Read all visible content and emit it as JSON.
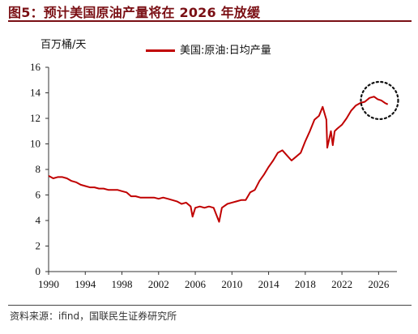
{
  "header": {
    "title": "图5：预计美国原油产量将在 2026 年放缓"
  },
  "footer": {
    "source": "资料来源：ifind，国联民生证券研究所"
  },
  "chart_data": {
    "type": "line",
    "ylabel": "百万桶/天",
    "xlim": [
      1990,
      2028
    ],
    "ylim": [
      0,
      16
    ],
    "x_ticks": [
      1990,
      1994,
      1998,
      2002,
      2006,
      2010,
      2014,
      2018,
      2022,
      2026
    ],
    "y_ticks": [
      0,
      2,
      4,
      6,
      8,
      10,
      12,
      14,
      16
    ],
    "legend_position": "top-center",
    "grid": false,
    "annotation": "dotted circle around 2025–2027 projection",
    "series": [
      {
        "name": "美国:原油:日均产量",
        "color": "#c00000",
        "points": [
          [
            1990.0,
            7.5
          ],
          [
            1990.5,
            7.3
          ],
          [
            1991.0,
            7.4
          ],
          [
            1991.5,
            7.4
          ],
          [
            1992.0,
            7.3
          ],
          [
            1992.5,
            7.1
          ],
          [
            1993.0,
            7.0
          ],
          [
            1993.5,
            6.8
          ],
          [
            1994.0,
            6.7
          ],
          [
            1994.5,
            6.6
          ],
          [
            1995.0,
            6.6
          ],
          [
            1995.5,
            6.5
          ],
          [
            1996.0,
            6.5
          ],
          [
            1996.5,
            6.4
          ],
          [
            1997.0,
            6.4
          ],
          [
            1997.5,
            6.4
          ],
          [
            1998.0,
            6.3
          ],
          [
            1998.5,
            6.2
          ],
          [
            1999.0,
            5.9
          ],
          [
            1999.5,
            5.9
          ],
          [
            2000.0,
            5.8
          ],
          [
            2000.5,
            5.8
          ],
          [
            2001.0,
            5.8
          ],
          [
            2001.5,
            5.8
          ],
          [
            2002.0,
            5.7
          ],
          [
            2002.5,
            5.8
          ],
          [
            2003.0,
            5.7
          ],
          [
            2003.5,
            5.6
          ],
          [
            2004.0,
            5.5
          ],
          [
            2004.5,
            5.3
          ],
          [
            2005.0,
            5.4
          ],
          [
            2005.5,
            5.1
          ],
          [
            2005.7,
            4.3
          ],
          [
            2006.0,
            5.0
          ],
          [
            2006.5,
            5.1
          ],
          [
            2007.0,
            5.0
          ],
          [
            2007.5,
            5.1
          ],
          [
            2008.0,
            5.0
          ],
          [
            2008.6,
            3.9
          ],
          [
            2008.9,
            5.0
          ],
          [
            2009.5,
            5.3
          ],
          [
            2010.0,
            5.4
          ],
          [
            2010.5,
            5.5
          ],
          [
            2011.0,
            5.6
          ],
          [
            2011.5,
            5.6
          ],
          [
            2012.0,
            6.2
          ],
          [
            2012.5,
            6.4
          ],
          [
            2013.0,
            7.1
          ],
          [
            2013.5,
            7.6
          ],
          [
            2014.0,
            8.2
          ],
          [
            2014.5,
            8.7
          ],
          [
            2015.0,
            9.3
          ],
          [
            2015.5,
            9.5
          ],
          [
            2016.0,
            9.1
          ],
          [
            2016.5,
            8.7
          ],
          [
            2017.0,
            9.0
          ],
          [
            2017.5,
            9.3
          ],
          [
            2018.0,
            10.2
          ],
          [
            2018.5,
            11.0
          ],
          [
            2019.0,
            11.9
          ],
          [
            2019.5,
            12.2
          ],
          [
            2019.9,
            12.9
          ],
          [
            2020.3,
            11.9
          ],
          [
            2020.4,
            9.7
          ],
          [
            2020.8,
            11.0
          ],
          [
            2021.0,
            9.9
          ],
          [
            2021.2,
            11.0
          ],
          [
            2021.5,
            11.2
          ],
          [
            2022.0,
            11.5
          ],
          [
            2022.5,
            12.0
          ],
          [
            2023.0,
            12.6
          ],
          [
            2023.5,
            13.0
          ],
          [
            2024.0,
            13.2
          ],
          [
            2024.5,
            13.3
          ],
          [
            2025.0,
            13.6
          ],
          [
            2025.5,
            13.7
          ],
          [
            2025.9,
            13.5
          ],
          [
            2026.3,
            13.4
          ],
          [
            2026.7,
            13.2
          ],
          [
            2027.0,
            13.1
          ]
        ]
      }
    ]
  }
}
